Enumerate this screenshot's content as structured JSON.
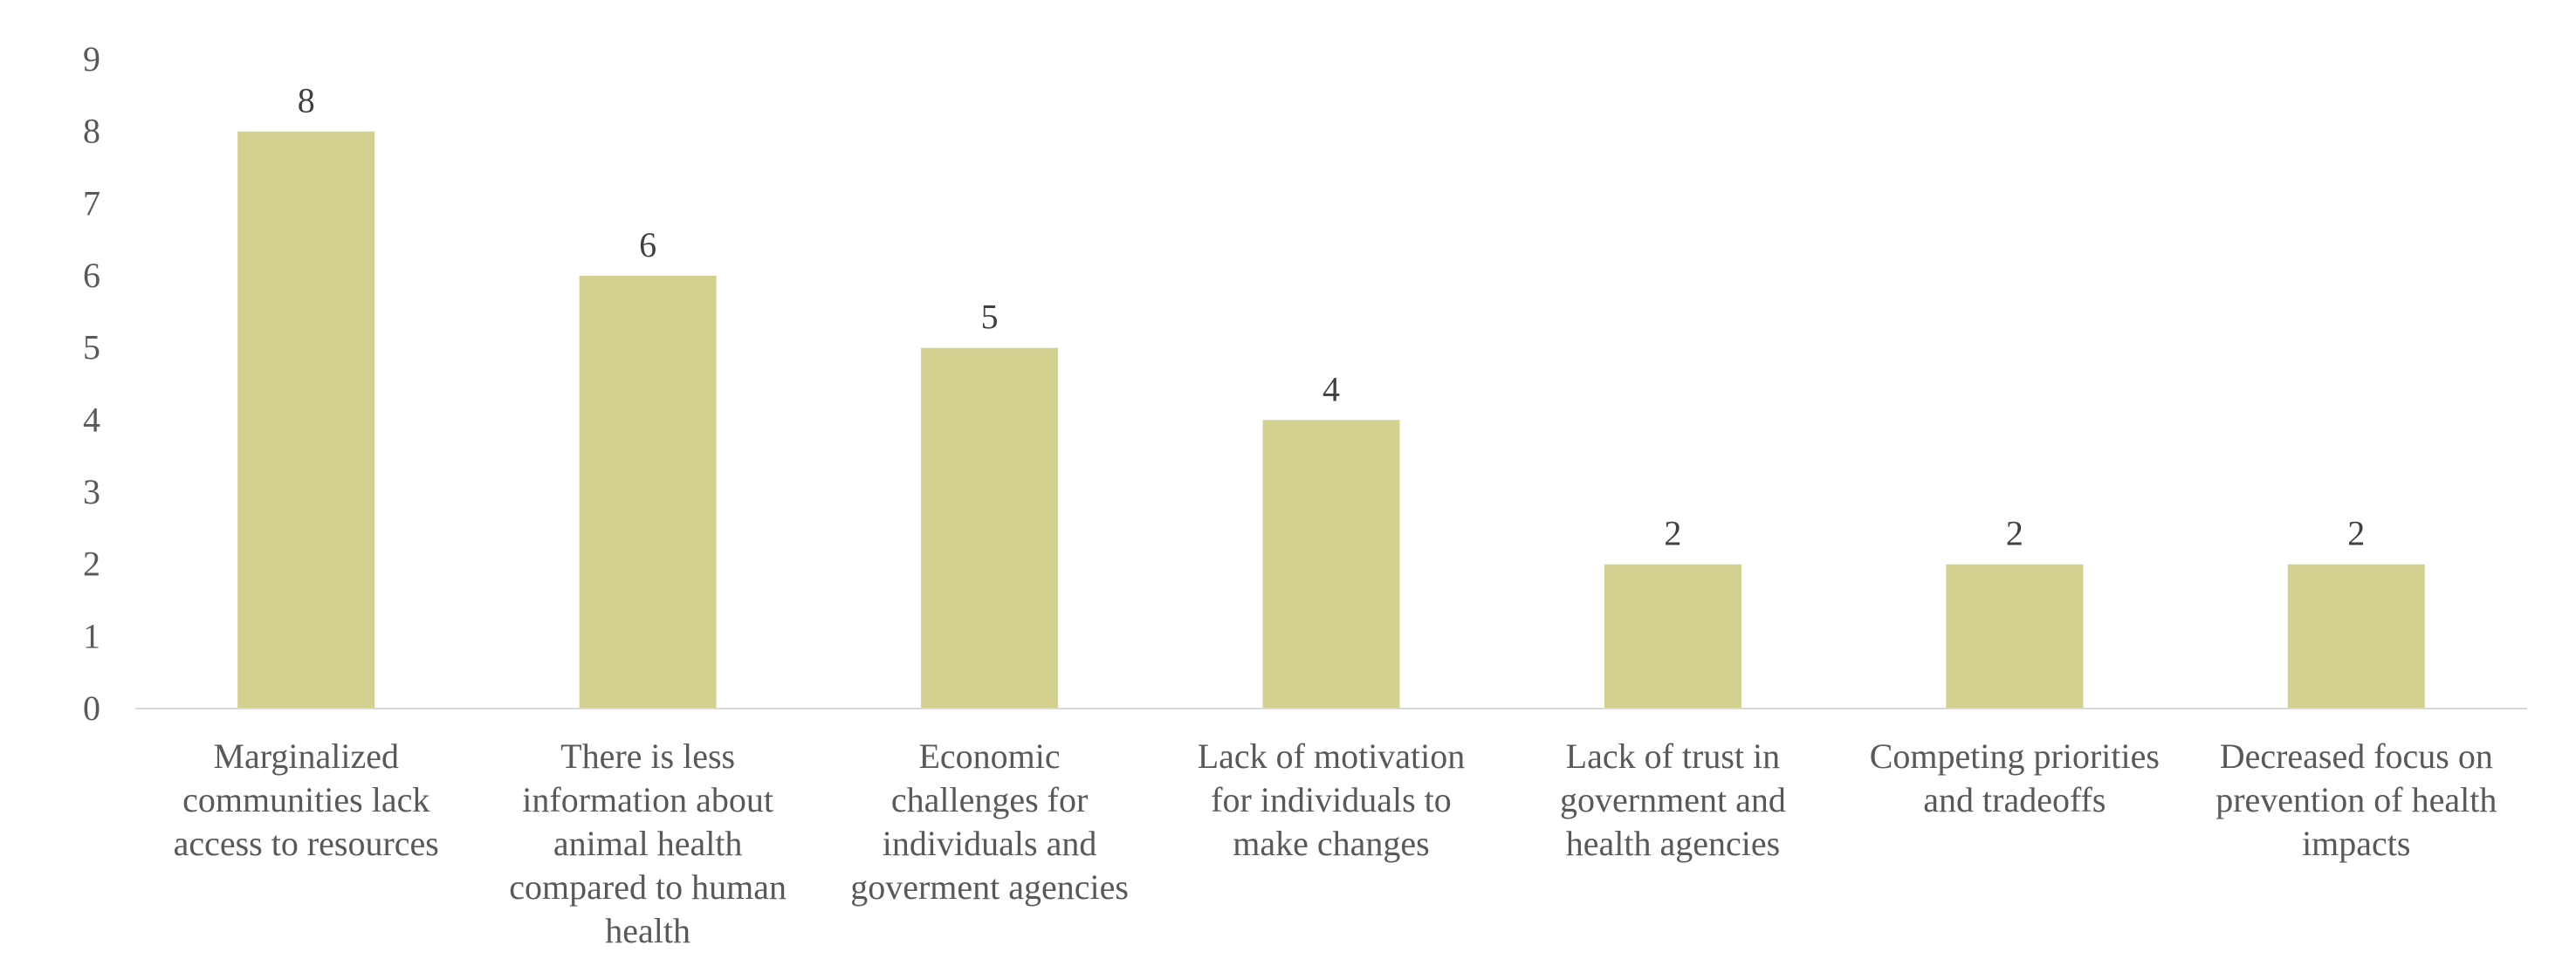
{
  "chart_data": {
    "type": "bar",
    "categories": [
      "Marginalized communities lack access to resources",
      "There is less information about animal health compared to human health",
      "Economic challenges for individuals and goverment agencies",
      "Lack of motivation for individuals to make changes",
      "Lack of trust in government and health agencies",
      "Competing priorities and tradeoffs",
      "Decreased focus on prevention of health impacts"
    ],
    "category_lines": [
      [
        "Marginalized",
        "communities lack",
        "access to resources"
      ],
      [
        "There is less",
        "information about",
        "animal health",
        "compared to human",
        "health"
      ],
      [
        "Economic",
        "challenges for",
        "individuals and",
        "goverment agencies"
      ],
      [
        "Lack of motivation",
        "for individuals to",
        "make changes"
      ],
      [
        "Lack of trust in",
        "government and",
        "health agencies"
      ],
      [
        "Competing priorities",
        "and tradeoffs"
      ],
      [
        "Decreased focus on",
        "prevention of health",
        "impacts"
      ]
    ],
    "values": [
      8,
      6,
      5,
      4,
      2,
      2,
      2
    ],
    "data_labels": [
      "8",
      "6",
      "5",
      "4",
      "2",
      "2",
      "2"
    ],
    "y_ticks": [
      "0",
      "1",
      "2",
      "3",
      "4",
      "5",
      "6",
      "7",
      "8",
      "9"
    ],
    "ylim": [
      0,
      9
    ],
    "grid": false,
    "legend": "none",
    "bar_color": "#d4d090",
    "title": "",
    "xlabel": "",
    "ylabel": ""
  }
}
